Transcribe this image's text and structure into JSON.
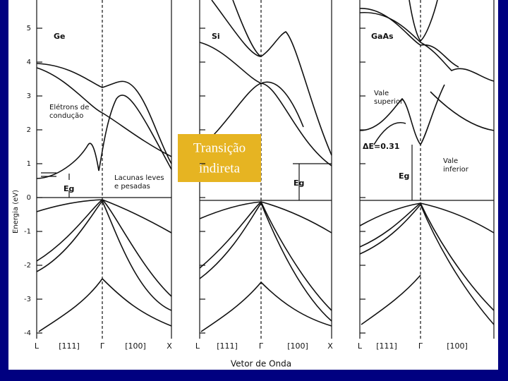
{
  "y_axis": {
    "label": "Energia (eV)",
    "ticks": [
      5,
      4,
      3,
      2,
      1,
      0,
      -1,
      -2,
      -3,
      -4
    ]
  },
  "panels": [
    {
      "name": "Ge",
      "eg_label": "Eg",
      "x_labels": [
        "L",
        "[111]",
        "Γ",
        "[100]",
        "X"
      ]
    },
    {
      "name": "Si",
      "eg_label": "Eg",
      "x_labels": [
        "L",
        "[111]",
        "Γ",
        "[100]",
        "X"
      ]
    },
    {
      "name": "GaAs",
      "eg_label": "Eg",
      "x_labels": [
        "L",
        "[111]",
        "Γ",
        "[100]"
      ]
    }
  ],
  "annotations": {
    "electrons": [
      "Elétrons de",
      "condução"
    ],
    "holes": [
      "Lacunas leves",
      "e pesadas"
    ],
    "upper_valley": [
      "Vale",
      "superior"
    ],
    "lower_valley": [
      "Vale",
      "inferior"
    ],
    "delta_e": "ΔE=0.31",
    "transition": [
      "Transição",
      "indireta"
    ]
  },
  "x_axis_label": "Vetor de Onda"
}
